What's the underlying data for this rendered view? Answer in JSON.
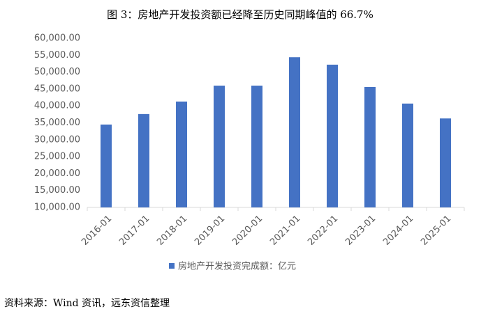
{
  "chart_data": {
    "type": "bar",
    "title": "图 3：房地产开发投资额已经降至历史同期峰值的 66.7%",
    "categories": [
      "2016-01",
      "2017-01",
      "2018-01",
      "2019-01",
      "2020-01",
      "2021-01",
      "2022-01",
      "2023-01",
      "2024-01",
      "2025-01"
    ],
    "series": [
      {
        "name": "房地产开发投资完成额：亿元",
        "color": "#4472c4",
        "values": [
          34500,
          37600,
          41300,
          46000,
          46000,
          54400,
          52200,
          45600,
          40700,
          36300
        ]
      }
    ],
    "ylim": [
      10000,
      60000
    ],
    "yticks": [
      {
        "value": 10000,
        "label": "10,000.00"
      },
      {
        "value": 15000,
        "label": "15,000.00"
      },
      {
        "value": 20000,
        "label": "20,000.00"
      },
      {
        "value": 25000,
        "label": "25,000.00"
      },
      {
        "value": 30000,
        "label": "30,000.00"
      },
      {
        "value": 35000,
        "label": "35,000.00"
      },
      {
        "value": 40000,
        "label": "40,000.00"
      },
      {
        "value": 45000,
        "label": "45,000.00"
      },
      {
        "value": 50000,
        "label": "50,000.00"
      },
      {
        "value": 55000,
        "label": "55,000.00"
      },
      {
        "value": 60000,
        "label": "60,000.00"
      }
    ],
    "grid": false,
    "legend": "bottom",
    "source": "资料来源：Wind 资讯，远东资信整理"
  }
}
